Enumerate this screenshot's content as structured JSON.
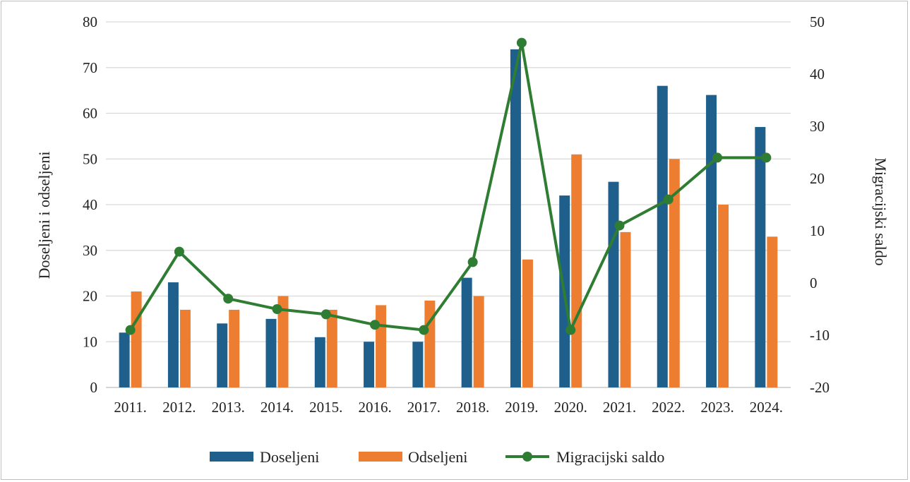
{
  "chart_data": {
    "type": "bar+line",
    "categories": [
      "2011.",
      "2012.",
      "2013.",
      "2014.",
      "2015.",
      "2016.",
      "2017.",
      "2018.",
      "2019.",
      "2020.",
      "2021.",
      "2022.",
      "2023.",
      "2024."
    ],
    "series": [
      {
        "name": "Doseljeni",
        "type": "bar",
        "axis": "left",
        "color": "#1f5f8b",
        "values": [
          12,
          23,
          14,
          15,
          11,
          10,
          10,
          24,
          74,
          42,
          45,
          66,
          64,
          57
        ]
      },
      {
        "name": "Odseljeni",
        "type": "bar",
        "axis": "left",
        "color": "#ed7d31",
        "values": [
          21,
          17,
          17,
          20,
          17,
          18,
          19,
          20,
          28,
          51,
          34,
          50,
          40,
          33
        ]
      },
      {
        "name": "Migracijski saldo",
        "type": "line",
        "axis": "right",
        "color": "#2e7d32",
        "values": [
          -9,
          6,
          -3,
          -5,
          -6,
          -8,
          -9,
          4,
          46,
          -9,
          11,
          16,
          24,
          24
        ]
      }
    ],
    "ylabel": "Doseljeni i odseljeni",
    "y2label": "Migracijski saldo",
    "ylim": [
      0,
      80
    ],
    "y2lim": [
      -20,
      50
    ],
    "yticks": [
      "0",
      "10",
      "20",
      "30",
      "40",
      "50",
      "60",
      "70",
      "80"
    ],
    "y2ticks": [
      "-20",
      "-10",
      "0",
      "10",
      "20",
      "30",
      "40",
      "50"
    ],
    "grid": true,
    "legend_position": "bottom"
  }
}
